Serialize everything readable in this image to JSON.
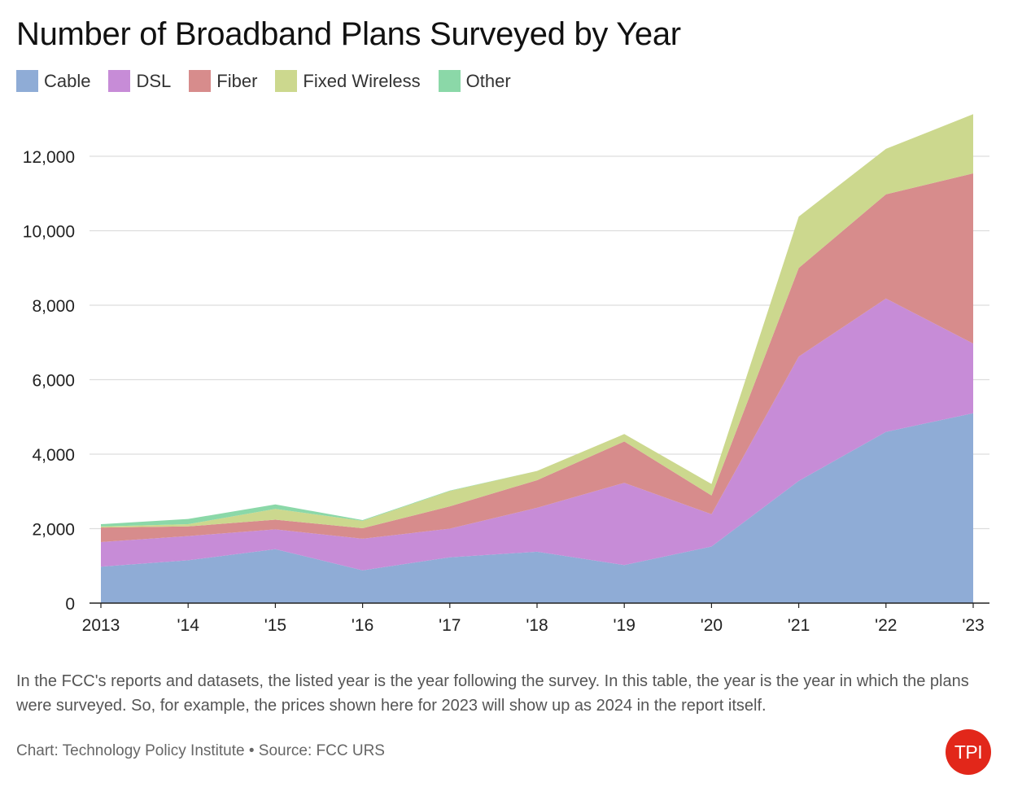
{
  "chart_data": {
    "type": "area",
    "stacked": true,
    "title": "Number of Broadband Plans Surveyed by Year",
    "categories": [
      "2013",
      "'14",
      "'15",
      "'16",
      "'17",
      "'18",
      "'19",
      "'20",
      "'21",
      "'22",
      "'23"
    ],
    "series": [
      {
        "name": "Cable",
        "color": "#8facd6",
        "values": [
          980,
          1150,
          1450,
          880,
          1230,
          1380,
          1020,
          1520,
          3280,
          4600,
          5100
        ]
      },
      {
        "name": "DSL",
        "color": "#c78cd7",
        "values": [
          660,
          650,
          530,
          850,
          770,
          1180,
          2210,
          870,
          3340,
          3580,
          1870
        ]
      },
      {
        "name": "Fiber",
        "color": "#d78c8c",
        "values": [
          390,
          260,
          260,
          280,
          600,
          740,
          1110,
          500,
          2380,
          2800,
          4570
        ]
      },
      {
        "name": "Fixed Wireless",
        "color": "#ccd88e",
        "values": [
          30,
          60,
          290,
          200,
          410,
          250,
          200,
          310,
          1380,
          1220,
          1590
        ]
      },
      {
        "name": "Other",
        "color": "#8bd8a8",
        "values": [
          60,
          140,
          120,
          20,
          10,
          0,
          0,
          0,
          0,
          0,
          0
        ]
      }
    ],
    "ylim": [
      0,
      13000
    ],
    "y_ticks": [
      0,
      2000,
      4000,
      6000,
      8000,
      10000,
      12000
    ],
    "y_tick_labels": [
      "0",
      "2,000",
      "4,000",
      "6,000",
      "8,000",
      "10,000",
      "12,000"
    ],
    "grid": true,
    "legend_position": "top-left",
    "xlabel": "",
    "ylabel": ""
  },
  "footnote": "In the FCC's reports and datasets, the listed year is the year following the survey. In this table, the year is the year in which the plans were surveyed. So, for example, the prices shown here for 2023 will show up as 2024 in the report itself.",
  "credit": "Chart: Technology Policy Institute • Source: FCC URS",
  "logo_text": "TPI"
}
